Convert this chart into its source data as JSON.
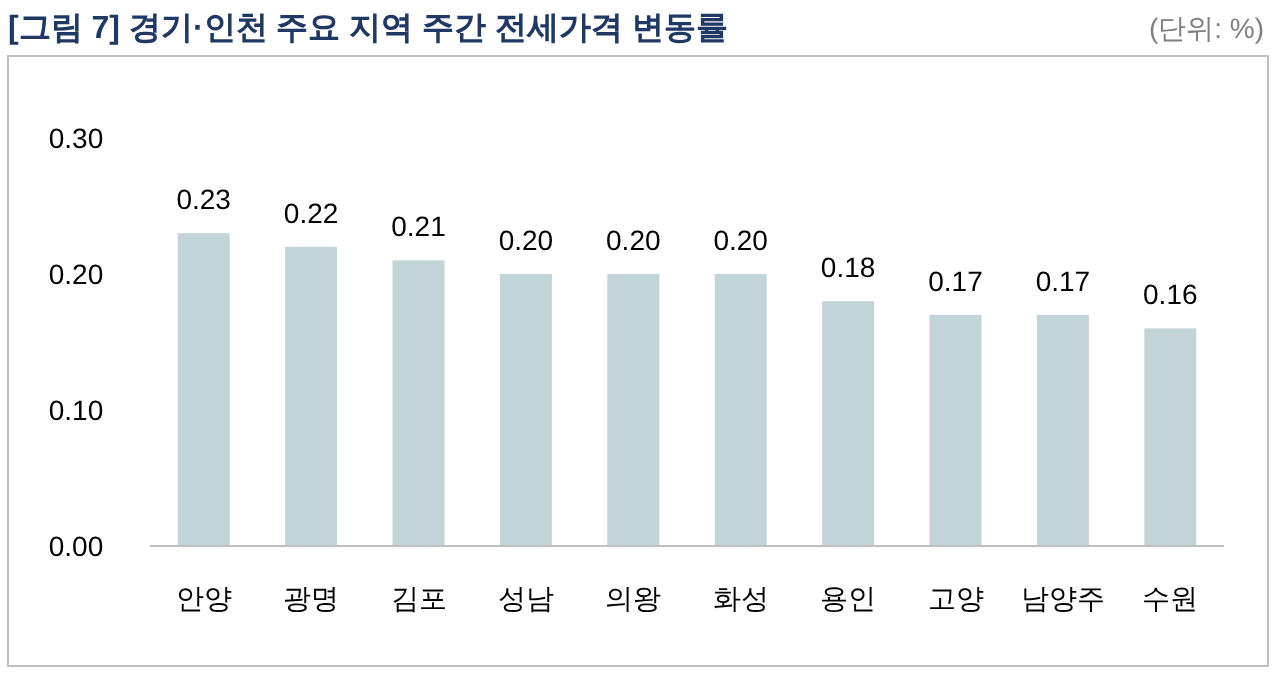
{
  "chart_data": {
    "type": "bar",
    "title": "[그림 7] 경기·인천 주요 지역 주간 전세가격 변동률",
    "annotations": [
      "(단위: %)"
    ],
    "categories": [
      "안양",
      "광명",
      "김포",
      "성남",
      "의왕",
      "화성",
      "용인",
      "고양",
      "남양주",
      "수원"
    ],
    "values": [
      0.23,
      0.22,
      0.21,
      0.2,
      0.2,
      0.2,
      0.18,
      0.17,
      0.17,
      0.16
    ],
    "value_labels": [
      "0.23",
      "0.22",
      "0.21",
      "0.20",
      "0.20",
      "0.20",
      "0.18",
      "0.17",
      "0.17",
      "0.16"
    ],
    "color": "#c3d4d9",
    "ylim": [
      0,
      0.3
    ],
    "yticks": [
      {
        "value": 0,
        "label": "0.00"
      },
      {
        "value": 0.1,
        "label": "0.10"
      },
      {
        "value": 0.2,
        "label": "0.20"
      },
      {
        "value": 0.3,
        "label": "0.30"
      }
    ],
    "grid": false
  }
}
